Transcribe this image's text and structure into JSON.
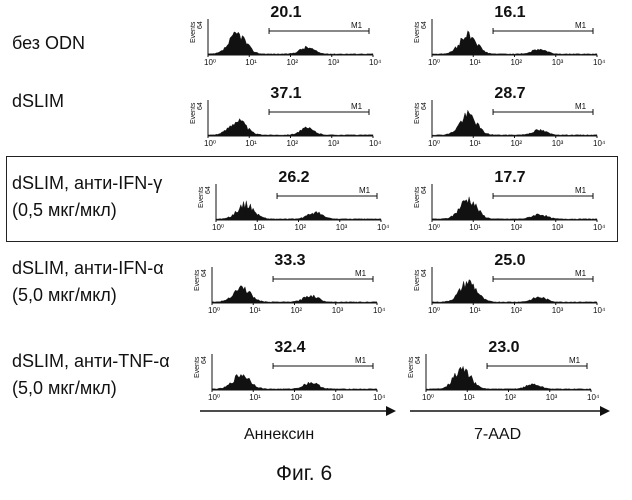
{
  "rows": [
    {
      "label_lines": [
        "без ODN"
      ],
      "left_pct": "20.1",
      "right_pct": "16.1"
    },
    {
      "label_lines": [
        "dSLIM"
      ],
      "left_pct": "37.1",
      "right_pct": "28.7"
    },
    {
      "label_lines": [
        "dSLIM, анти-IFN-γ",
        "(0,5 мкг/мкл)"
      ],
      "left_pct": "26.2",
      "right_pct": "17.7"
    },
    {
      "label_lines": [
        "dSLIM, анти-IFN-α",
        "(5,0 мкг/мкл)"
      ],
      "left_pct": "33.3",
      "right_pct": "25.0"
    },
    {
      "label_lines": [
        "dSLIM, анти-TNF-α",
        "(5,0 мкг/мкл)"
      ],
      "left_pct": "32.4",
      "right_pct": "23.0"
    }
  ],
  "histogram": {
    "y_label": "Events",
    "y_max": "64",
    "gate_label": "M1",
    "x_ticks": [
      "10⁰",
      "10¹",
      "10²",
      "10³",
      "10⁴"
    ]
  },
  "axes": {
    "left_label": "Аннексин",
    "right_label": "7-AAD"
  },
  "caption": "Фиг. 6"
}
